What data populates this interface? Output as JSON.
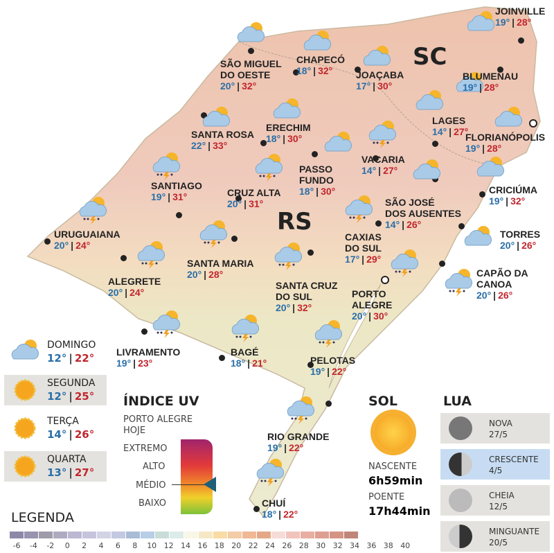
{
  "map": {
    "state_labels": [
      "SC",
      "RS"
    ]
  },
  "cities": [
    {
      "name": "JOINVILLE",
      "min": "19°",
      "max": "28°",
      "icon": "partly-cloudy"
    },
    {
      "name": "SÃO MIGUEL\nDO OESTE",
      "min": "20°",
      "max": "32°",
      "icon": "partly-cloudy"
    },
    {
      "name": "CHAPECÓ",
      "min": "18°",
      "max": "32°",
      "icon": "partly-cloudy"
    },
    {
      "name": "JOAÇABA",
      "min": "17°",
      "max": "30°",
      "icon": "partly-cloudy"
    },
    {
      "name": "BLUMENAU",
      "min": "19°",
      "max": "28°",
      "icon": "partly-cloudy"
    },
    {
      "name": "LAGES",
      "min": "14°",
      "max": "27°",
      "icon": "partly-cloudy"
    },
    {
      "name": "FLORIANÓPOLIS",
      "min": "19°",
      "max": "28°",
      "icon": "partly-cloudy"
    },
    {
      "name": "SANTA ROSA",
      "min": "22°",
      "max": "33°",
      "icon": "partly-cloudy"
    },
    {
      "name": "ERECHIM",
      "min": "18°",
      "max": "30°",
      "icon": "partly-cloudy"
    },
    {
      "name": "PASSO\nFUNDO",
      "min": "18°",
      "max": "30°",
      "icon": "partly-cloudy"
    },
    {
      "name": "VACARIA",
      "min": "14°",
      "max": "27°",
      "icon": "storm"
    },
    {
      "name": "SANTIAGO",
      "min": "19°",
      "max": "31°",
      "icon": "storm"
    },
    {
      "name": "CRUZ ALTA",
      "min": "20°",
      "max": "31°",
      "icon": "storm"
    },
    {
      "name": "SÃO JOSÉ\nDOS AUSENTES",
      "min": "14°",
      "max": "26°",
      "icon": "partly-cloudy"
    },
    {
      "name": "CRICIÚMA",
      "min": "19°",
      "max": "32°",
      "icon": "partly-cloudy"
    },
    {
      "name": "URUGUAIANA",
      "min": "20°",
      "max": "24°",
      "icon": "storm"
    },
    {
      "name": "CAXIAS\nDO SUL",
      "min": "17°",
      "max": "29°",
      "icon": "storm"
    },
    {
      "name": "TORRES",
      "min": "20°",
      "max": "26°",
      "icon": "partly-cloudy"
    },
    {
      "name": "ALEGRETE",
      "min": "20°",
      "max": "24°",
      "icon": "storm"
    },
    {
      "name": "SANTA MARIA",
      "min": "20°",
      "max": "28°",
      "icon": "storm"
    },
    {
      "name": "SANTA CRUZ\nDO SUL",
      "min": "20°",
      "max": "32°",
      "icon": "storm"
    },
    {
      "name": "CAPÃO DA\nCANOA",
      "min": "20°",
      "max": "26°",
      "icon": "storm"
    },
    {
      "name": "PORTO\nALEGRE",
      "min": "20°",
      "max": "30°",
      "icon": "storm"
    },
    {
      "name": "LIVRAMENTO",
      "min": "19°",
      "max": "23°",
      "icon": "storm"
    },
    {
      "name": "BAGÉ",
      "min": "18°",
      "max": "21°",
      "icon": "storm"
    },
    {
      "name": "PELOTAS",
      "min": "19°",
      "max": "22°",
      "icon": "storm"
    },
    {
      "name": "RIO GRANDE",
      "min": "19°",
      "max": "22°",
      "icon": "storm"
    },
    {
      "name": "CHUÍ",
      "min": "18°",
      "max": "22°",
      "icon": "storm"
    }
  ],
  "forecast": [
    {
      "day": "DOMINGO",
      "min": "12°",
      "max": "22°",
      "icon": "partly-cloudy"
    },
    {
      "day": "SEGUNDA",
      "min": "12°",
      "max": "25°",
      "icon": "sun"
    },
    {
      "day": "TERÇA",
      "min": "14°",
      "max": "26°",
      "icon": "sun"
    },
    {
      "day": "QUARTA",
      "min": "13°",
      "max": "27°",
      "icon": "sun"
    }
  ],
  "uv": {
    "title": "ÍNDICE UV",
    "subtitle_1": "PORTO ALEGRE",
    "subtitle_2": "HOJE",
    "levels": [
      "EXTREMO",
      "ALTO",
      "MÉDIO",
      "BAIXO"
    ],
    "current": "MÉDIO"
  },
  "sun": {
    "title": "SOL",
    "rise_label": "NASCENTE",
    "rise": "6h59min",
    "set_label": "POENTE",
    "set": "17h44min"
  },
  "moon": {
    "title": "LUA",
    "phases": [
      {
        "name": "NOVA",
        "date": "27/5"
      },
      {
        "name": "CRESCENTE",
        "date": "4/5",
        "highlighted": true
      },
      {
        "name": "CHEIA",
        "date": "12/5"
      },
      {
        "name": "MINGUANTE",
        "date": "20/5"
      }
    ]
  },
  "legend": {
    "title": "LEGENDA",
    "ticks": [
      "-6",
      "-4",
      "-2",
      "0",
      "2",
      "4",
      "6",
      "8",
      "10",
      "12",
      "14",
      "16",
      "18",
      "20",
      "22",
      "24",
      "26",
      "28",
      "30",
      "32",
      "34",
      "36",
      "38",
      "40"
    ],
    "colors": [
      "#8d88a8",
      "#9893ae",
      "#a09ba8",
      "#aeaac0",
      "#bbb8d2",
      "#c6c4dc",
      "#d3d3e6",
      "#c3c9e0",
      "#a9bcd6",
      "#b8cde6",
      "#c9ddd8",
      "#dcece8",
      "#f8f6e6",
      "#f6e8c4",
      "#f8dca4",
      "#f4cca8",
      "#f0b894",
      "#e4a888",
      "#f6dcd8",
      "#f0c4bc",
      "#e8aea2",
      "#de9e92",
      "#d49484",
      "#c0867a"
    ]
  }
}
